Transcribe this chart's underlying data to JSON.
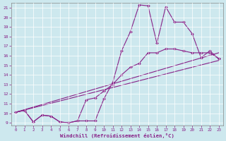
{
  "xlabel": "Windchill (Refroidissement éolien,°C)",
  "xlim": [
    -0.5,
    23.5
  ],
  "ylim": [
    8.7,
    21.5
  ],
  "xticks": [
    0,
    1,
    2,
    3,
    4,
    5,
    6,
    7,
    8,
    9,
    10,
    11,
    12,
    13,
    14,
    15,
    16,
    17,
    18,
    19,
    20,
    21,
    22,
    23
  ],
  "yticks": [
    9,
    10,
    11,
    12,
    13,
    14,
    15,
    16,
    17,
    18,
    19,
    20,
    21
  ],
  "bg_color": "#cde8ee",
  "line_color": "#882288",
  "line1_x": [
    0,
    1,
    2,
    3,
    4,
    5,
    6,
    7,
    8,
    9,
    10,
    11,
    12,
    13,
    14,
    15,
    16,
    17,
    18,
    19,
    20,
    21,
    22,
    23
  ],
  "line1_y": [
    10.1,
    10.3,
    9.1,
    9.8,
    9.7,
    9.1,
    9.0,
    9.2,
    9.2,
    9.2,
    11.5,
    13.2,
    16.5,
    18.5,
    21.3,
    21.2,
    17.3,
    21.1,
    19.5,
    19.5,
    18.3,
    15.8,
    16.5,
    15.7
  ],
  "line2_x": [
    0,
    1,
    2,
    3,
    4,
    5,
    6,
    7,
    8,
    9,
    10,
    11,
    12,
    13,
    14,
    15,
    16,
    17,
    18,
    19,
    20,
    21,
    22,
    23
  ],
  "line2_y": [
    10.1,
    10.3,
    9.1,
    9.8,
    9.7,
    9.1,
    9.0,
    9.2,
    11.4,
    11.6,
    12.3,
    13.0,
    14.0,
    14.8,
    15.2,
    16.3,
    16.3,
    16.7,
    16.7,
    16.5,
    16.3,
    16.3,
    16.3,
    15.7
  ],
  "line3_x": [
    0,
    23
  ],
  "line3_y": [
    10.1,
    16.3
  ],
  "line4_x": [
    0,
    23
  ],
  "line4_y": [
    10.1,
    15.5
  ],
  "linewidth": 0.8,
  "marker_size": 2.0
}
